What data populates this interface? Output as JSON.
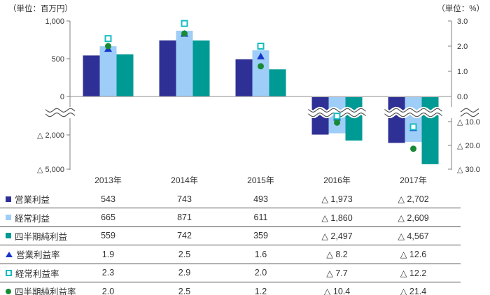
{
  "colors": {
    "bar_operating": "#2F3095",
    "bar_ordinary": "#9ECDF8",
    "bar_net": "#009A94",
    "rate_operating": "#1535CC",
    "rate_ordinary": "#15BCC0",
    "rate_net": "#178A35",
    "axis": "#7F7F7F",
    "zero_line": "#8C8C8C",
    "wave_line": "#4A4A4A",
    "text": "#333333",
    "table_line": "#4D4D4D"
  },
  "chart_data": {
    "type": "bar",
    "subtype": "grouped bars (left axis, million yen) with marker overlay (right axis, %) and broken axes",
    "categories": [
      "2013年",
      "2014年",
      "2015年",
      "2016年",
      "2017年"
    ],
    "bar_series": [
      {
        "name": "営業利益",
        "color_key": "bar_operating",
        "axis": "left",
        "values": [
          543,
          743,
          493,
          -1973,
          -2702
        ],
        "formatted": [
          "543",
          "743",
          "493",
          "△ 1,973",
          "△ 2,702"
        ]
      },
      {
        "name": "経常利益",
        "color_key": "bar_ordinary",
        "axis": "left",
        "values": [
          665,
          871,
          611,
          -1860,
          -2609
        ],
        "formatted": [
          "665",
          "871",
          "611",
          "△ 1,860",
          "△ 2,609"
        ]
      },
      {
        "name": "四半期純利益",
        "color_key": "bar_net",
        "axis": "left",
        "values": [
          559,
          742,
          359,
          -2497,
          -4567
        ],
        "formatted": [
          "559",
          "742",
          "359",
          "△ 2,497",
          "△ 4,567"
        ]
      }
    ],
    "marker_series": [
      {
        "name": "営業利益率",
        "marker": "triangle",
        "color_key": "rate_operating",
        "axis": "right",
        "values": [
          1.9,
          2.5,
          1.6,
          -8.2,
          -12.6
        ],
        "formatted": [
          "1.9",
          "2.5",
          "1.6",
          "△ 8.2",
          "△ 12.6"
        ]
      },
      {
        "name": "経常利益率",
        "marker": "open-square",
        "color_key": "rate_ordinary",
        "axis": "right",
        "values": [
          2.3,
          2.9,
          2.0,
          -7.7,
          -12.2
        ],
        "formatted": [
          "2.3",
          "2.9",
          "2.0",
          "△ 7.7",
          "△ 12.2"
        ]
      },
      {
        "name": "四半期純利益率",
        "marker": "circle",
        "color_key": "rate_net",
        "axis": "right",
        "values": [
          2.0,
          2.5,
          1.2,
          -10.4,
          -21.4
        ],
        "formatted": [
          "2.0",
          "2.5",
          "1.2",
          "△ 10.4",
          "△ 21.4"
        ]
      }
    ],
    "left_axis": {
      "unit": "（単位：百万円）",
      "break": true,
      "ticks": [
        {
          "v": 1000,
          "label": "1,000"
        },
        {
          "v": 500,
          "label": "500"
        },
        {
          "v": 0,
          "label": "0"
        },
        {
          "v": -2000,
          "label": "△ 2,000"
        },
        {
          "v": -5000,
          "label": "△ 5,000"
        }
      ]
    },
    "right_axis": {
      "unit": "（単位：%）",
      "break": true,
      "ticks": [
        {
          "v": 3,
          "label": "3.0"
        },
        {
          "v": 2,
          "label": "2.0"
        },
        {
          "v": 1,
          "label": "1.0"
        },
        {
          "v": 0,
          "label": "0.0"
        },
        {
          "v": -10,
          "label": "△ 10.0"
        },
        {
          "v": -20,
          "label": "△ 20.0"
        },
        {
          "v": -30,
          "label": "△ 30.0"
        }
      ]
    }
  }
}
